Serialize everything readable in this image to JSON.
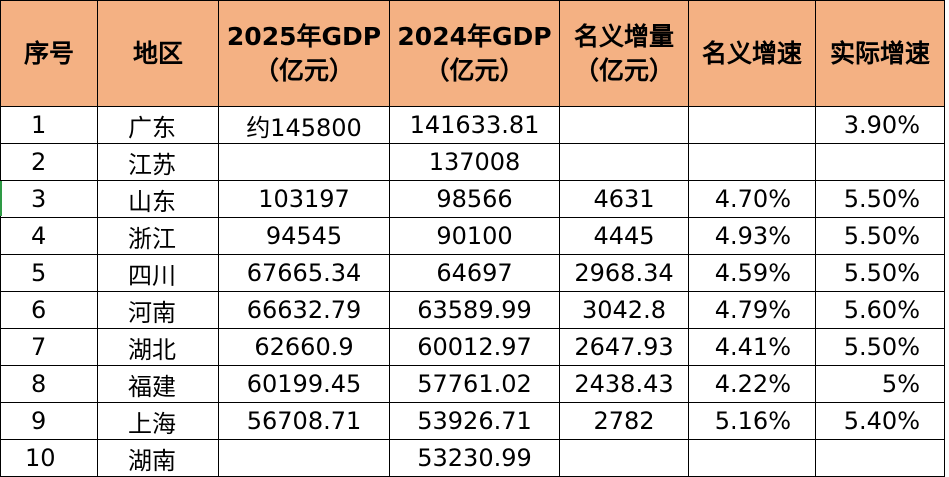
{
  "columns": [
    {
      "line1": "序号",
      "line2": ""
    },
    {
      "line1": "地区",
      "line2": ""
    },
    {
      "line1": "2025年GDP",
      "line2": "（亿元）"
    },
    {
      "line1": "2024年GDP",
      "line2": "（亿元）"
    },
    {
      "line1": "名义增量",
      "line2": "（亿元）"
    },
    {
      "line1": "名义增速",
      "line2": ""
    },
    {
      "line1": "实际增速",
      "line2": ""
    }
  ],
  "rows": [
    {
      "no": "1",
      "region": "广东",
      "gdp2025": "约145800",
      "gdp2024": "141633.81",
      "increase": "",
      "nominal": "",
      "real": "3.90%"
    },
    {
      "no": "2",
      "region": "江苏",
      "gdp2025": "",
      "gdp2024": "137008",
      "increase": "",
      "nominal": "",
      "real": ""
    },
    {
      "no": "3",
      "region": "山东",
      "gdp2025": "103197",
      "gdp2024": "98566",
      "increase": "4631",
      "nominal": "4.70%",
      "real": "5.50%"
    },
    {
      "no": "4",
      "region": "浙江",
      "gdp2025": "94545",
      "gdp2024": "90100",
      "increase": "4445",
      "nominal": "4.93%",
      "real": "5.50%"
    },
    {
      "no": "5",
      "region": "四川",
      "gdp2025": "67665.34",
      "gdp2024": "64697",
      "increase": "2968.34",
      "nominal": "4.59%",
      "real": "5.50%"
    },
    {
      "no": "6",
      "region": "河南",
      "gdp2025": "66632.79",
      "gdp2024": "63589.99",
      "increase": "3042.8",
      "nominal": "4.79%",
      "real": "5.60%"
    },
    {
      "no": "7",
      "region": "湖北",
      "gdp2025": "62660.9",
      "gdp2024": "60012.97",
      "increase": "2647.93",
      "nominal": "4.41%",
      "real": "5.50%"
    },
    {
      "no": "8",
      "region": "福建",
      "gdp2025": "60199.45",
      "gdp2024": "57761.02",
      "increase": "2438.43",
      "nominal": "4.22%",
      "real": "5%"
    },
    {
      "no": "9",
      "region": "上海",
      "gdp2025": "56708.71",
      "gdp2024": "53926.71",
      "increase": "2782",
      "nominal": "5.16%",
      "real": "5.40%"
    },
    {
      "no": "10",
      "region": "湖南",
      "gdp2025": "",
      "gdp2024": "53230.99",
      "increase": "",
      "nominal": "",
      "real": ""
    }
  ],
  "colors": {
    "header_bg": "#f4b183",
    "border": "#000000",
    "row_marker": "#2e9a45"
  }
}
